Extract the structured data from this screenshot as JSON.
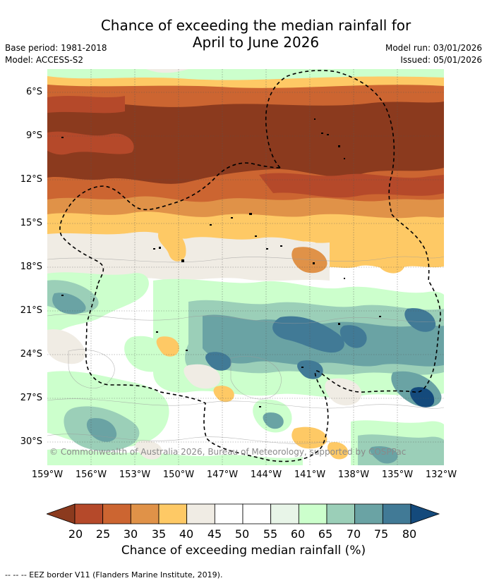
{
  "title_line1": "Chance of exceeding the median rainfall for",
  "title_line2": "April to June 2026",
  "base_period": "Base period: 1981-2018",
  "model": "Model: ACCESS-S2",
  "model_run": "Model run: 03/01/2026",
  "issued": "Issued: 05/01/2026",
  "latitude_labels": [
    "6°S",
    "9°S",
    "12°S",
    "15°S",
    "18°S",
    "21°S",
    "24°S",
    "27°S",
    "30°S"
  ],
  "longitude_labels": [
    "159°W",
    "156°W",
    "153°W",
    "150°W",
    "147°W",
    "144°W",
    "141°W",
    "138°W",
    "135°W",
    "132°W"
  ],
  "copyright": "© Commonwealth of Australia 2026, Bureau of Meteorology, supported by COSPPac",
  "colorbar": {
    "ticks": [
      "20",
      "25",
      "30",
      "35",
      "40",
      "45",
      "50",
      "55",
      "60",
      "65",
      "70",
      "75",
      "80"
    ],
    "colors": [
      "#8b3a1e",
      "#b5492a",
      "#cc6531",
      "#e09248",
      "#fec965",
      "#f0ece4",
      "#ffffff",
      "#ffffff",
      "#e8f5e8",
      "#ccffcc",
      "#9bcfb8",
      "#6aa3a4",
      "#417a96",
      "#144a7c"
    ],
    "title": "Chance of exceeding median rainfall (%)"
  },
  "footnote": "--  --  -- EEZ border V11 (Flanders Marine Institute, 2019)."
}
